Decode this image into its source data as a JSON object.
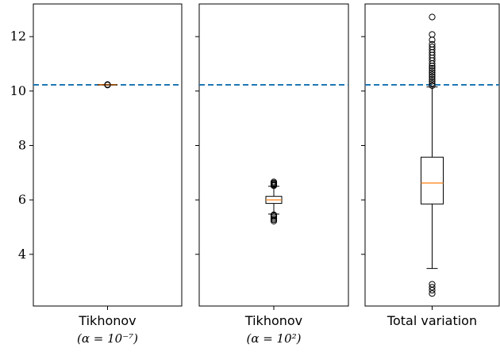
{
  "chart_data": {
    "type": "box",
    "ylim": [
      2.1,
      13.2
    ],
    "yticks": [
      "4",
      "6",
      "8",
      "10",
      "12"
    ],
    "reference_line": {
      "value": 10.23,
      "style": "dashed",
      "color": "#1f77b4"
    },
    "box_color": "#000000",
    "median_color": "#ff7f0e",
    "panels": [
      {
        "category_label": "Tikhonov",
        "category_sub": "(α = 10⁻⁷)",
        "box": {
          "q1": 10.22,
          "median": 10.23,
          "q3": 10.24,
          "whisker_low": 10.22,
          "whisker_high": 10.24
        },
        "outliers": [
          10.22,
          10.24
        ]
      },
      {
        "category_label": "Tikhonov",
        "category_sub": "(α = 10²)",
        "box": {
          "q1": 5.87,
          "median": 6.0,
          "q3": 6.13,
          "whisker_low": 5.48,
          "whisker_high": 6.5
        },
        "outliers": [
          5.22,
          5.27,
          5.32,
          5.38,
          5.43,
          5.45,
          6.52,
          6.55,
          6.58,
          6.62,
          6.66
        ]
      },
      {
        "category_label": "Total variation",
        "category_sub": "",
        "box": {
          "q1": 5.85,
          "median": 6.62,
          "q3": 7.57,
          "whisker_low": 3.48,
          "whisker_high": 10.15
        },
        "outliers": [
          2.56,
          2.68,
          2.79,
          2.9,
          10.2,
          10.28,
          10.36,
          10.44,
          10.52,
          10.6,
          10.68,
          10.76,
          10.84,
          10.92,
          11.01,
          11.12,
          11.22,
          11.32,
          11.42,
          11.52,
          11.62,
          11.72,
          11.88,
          12.08,
          12.72
        ]
      }
    ]
  }
}
